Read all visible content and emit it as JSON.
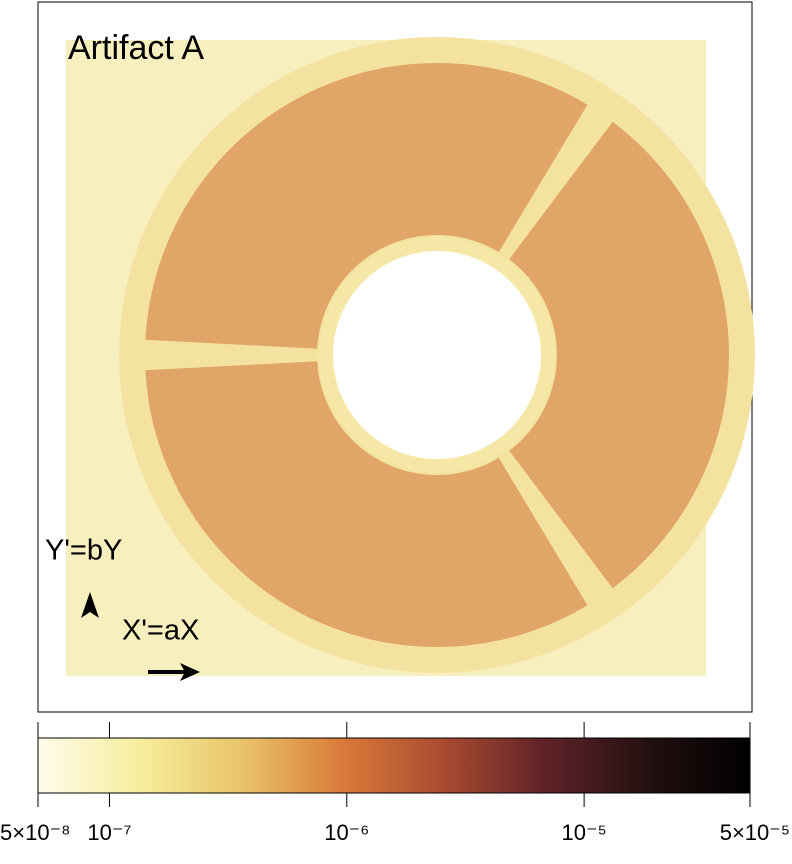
{
  "chart_data": {
    "type": "heatmap",
    "title": "Artifact A",
    "annotations": [
      "Y'=bY",
      "X'=aX"
    ],
    "colorbar": {
      "scale": "log",
      "lim": [
        5e-08,
        5e-05
      ],
      "ticks": [
        {
          "value": 5e-08,
          "label": "5×10⁻⁸"
        },
        {
          "value": 1e-07,
          "label": "10⁻⁷"
        },
        {
          "value": 1e-06,
          "label": "10⁻⁶"
        },
        {
          "value": 1e-05,
          "label": "10⁻⁵"
        },
        {
          "value": 5e-05,
          "label": "5×10⁻⁵"
        }
      ],
      "colors": [
        "#fffbeb",
        "#f6ee9c",
        "#e9c46a",
        "#d97a3a",
        "#a94a30",
        "#5e2228",
        "#231010",
        "#000000"
      ]
    }
  }
}
